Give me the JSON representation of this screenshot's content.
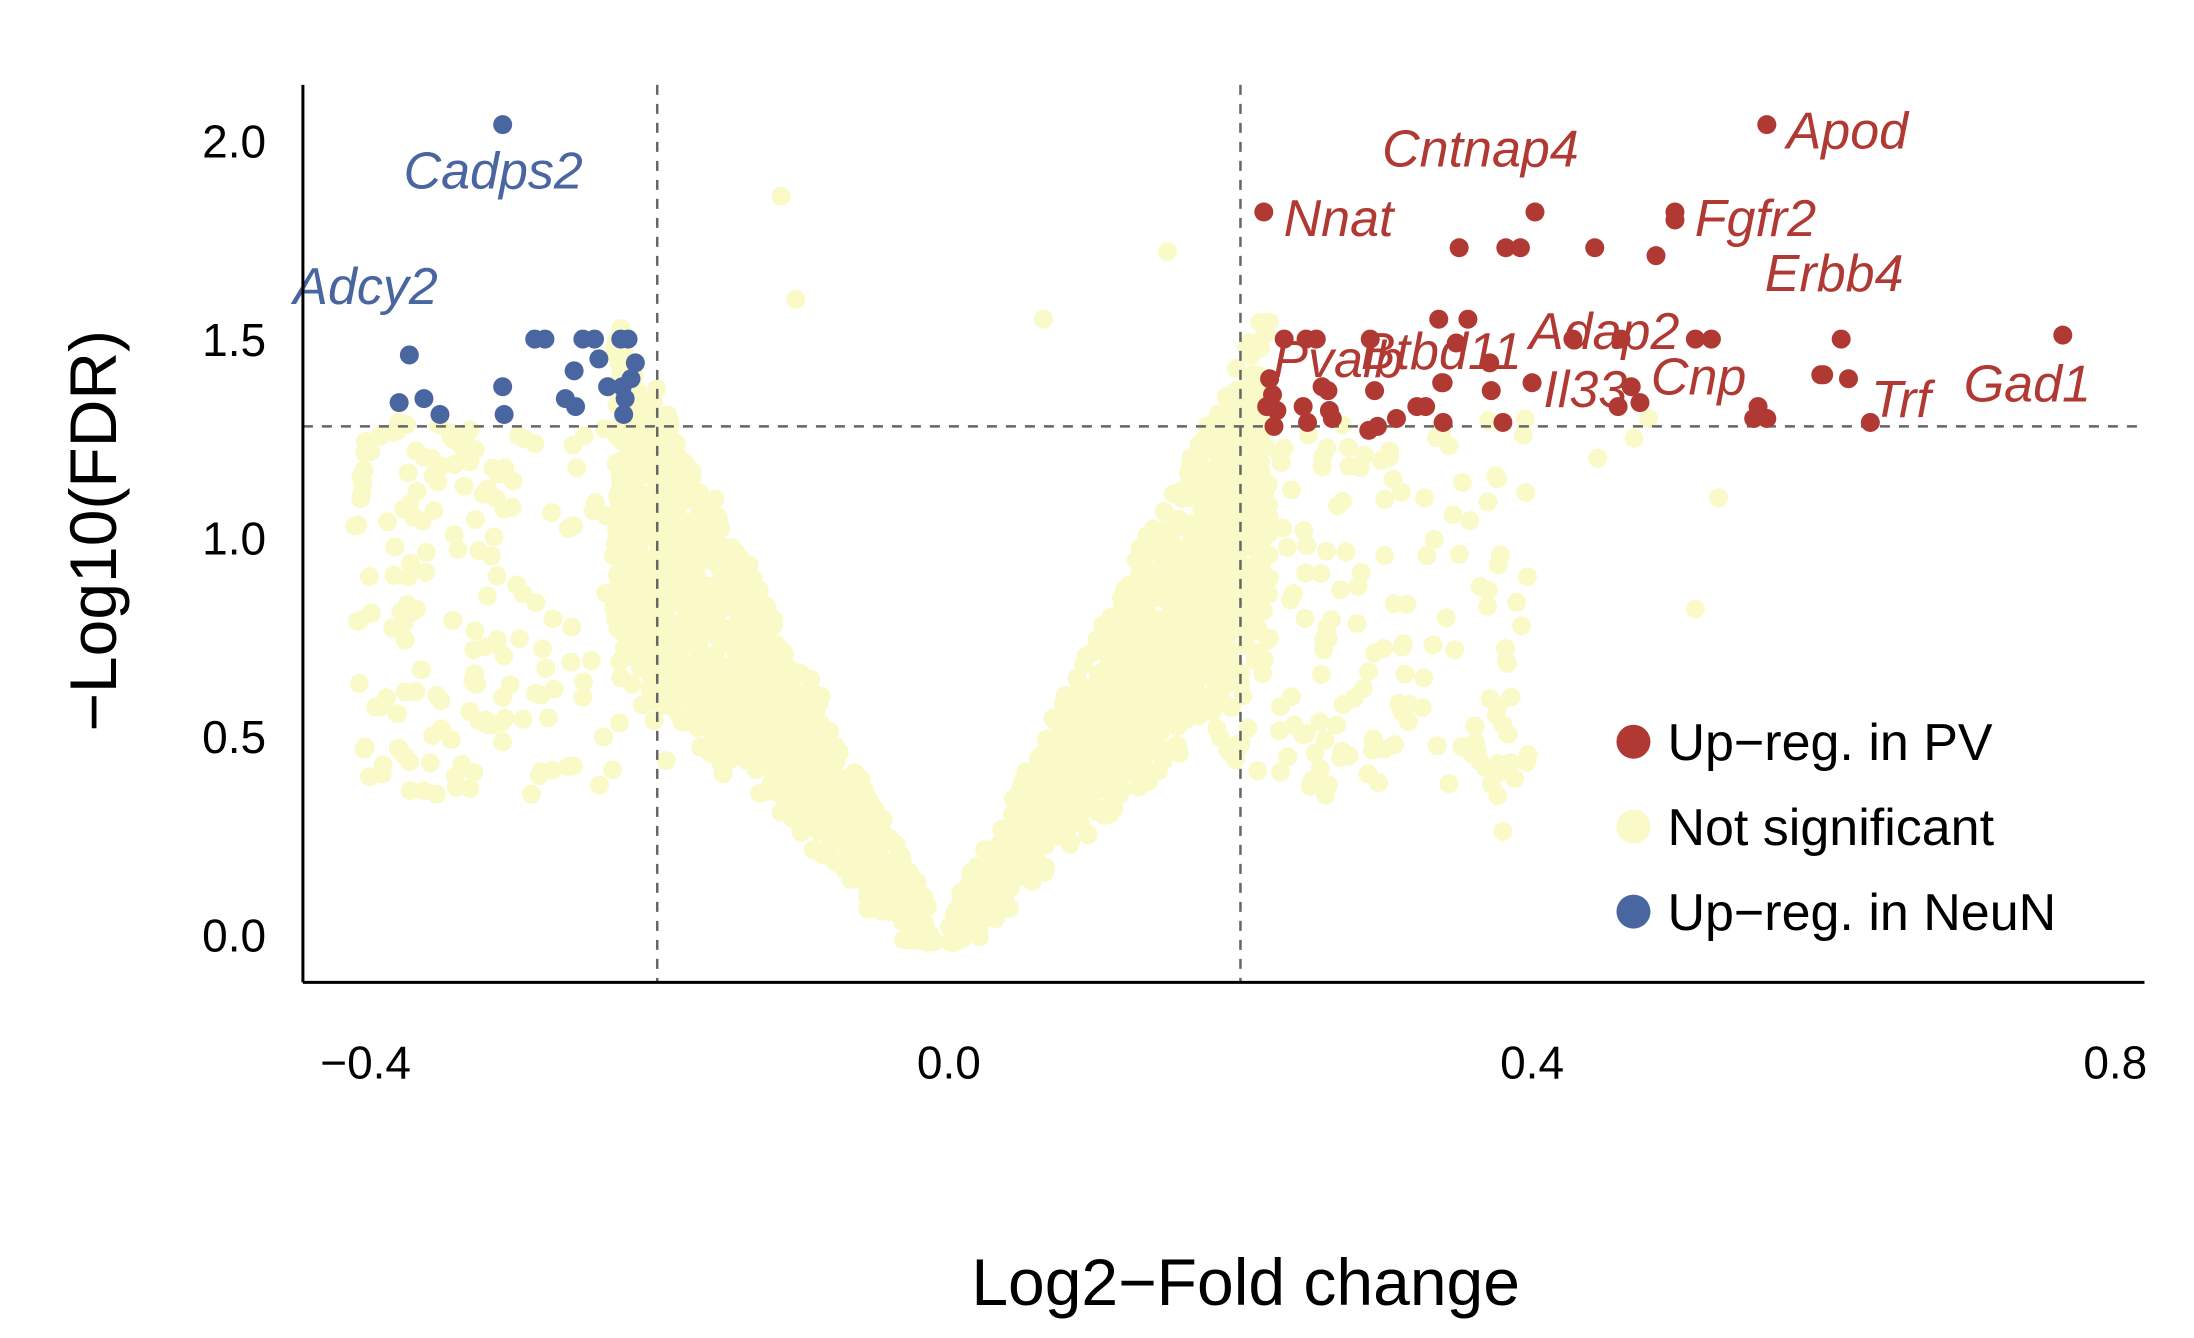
{
  "chart_data": {
    "type": "scatter",
    "title": "",
    "xlabel": "Log2−Fold change",
    "ylabel": "−Log10(FDR)",
    "xlim": [
      -0.443,
      0.82
    ],
    "ylim": [
      -0.12,
      2.14
    ],
    "xticks": [
      -0.4,
      0.0,
      0.4,
      0.8
    ],
    "xtick_labels": [
      "−0.4",
      "0.0",
      "0.4",
      "0.8"
    ],
    "yticks": [
      0.0,
      0.5,
      1.0,
      1.5,
      2.0
    ],
    "ytick_labels": [
      "0.0",
      "0.5",
      "1.0",
      "1.5",
      "2.0"
    ],
    "grid": false,
    "reference_lines": {
      "vertical": [
        -0.2,
        0.2
      ],
      "horizontal": [
        1.28
      ]
    },
    "legend": {
      "placement": "bottom-right",
      "entries": [
        {
          "label": "Up−reg. in PV",
          "color": "#B03A33"
        },
        {
          "label": "Not significant",
          "color": "#FAFAC8"
        },
        {
          "label": "Up−reg. in NeuN",
          "color": "#4A66A0"
        }
      ]
    },
    "colors": {
      "up_pv": "#B03A33",
      "not_significant": "#FAFAC8",
      "up_neun": "#4A66A0"
    },
    "series": [
      {
        "name": "Up−reg. in NeuN",
        "key": "up_neun",
        "points": [
          [
            -0.306,
            2.04
          ],
          [
            -0.37,
            1.46
          ],
          [
            -0.377,
            1.34
          ],
          [
            -0.36,
            1.35
          ],
          [
            -0.349,
            1.31
          ],
          [
            -0.306,
            1.38
          ],
          [
            -0.305,
            1.31
          ],
          [
            -0.284,
            1.5
          ],
          [
            -0.277,
            1.5
          ],
          [
            -0.263,
            1.35
          ],
          [
            -0.257,
            1.42
          ],
          [
            -0.256,
            1.33
          ],
          [
            -0.251,
            1.5
          ],
          [
            -0.243,
            1.5
          ],
          [
            -0.24,
            1.45
          ],
          [
            -0.234,
            1.38
          ],
          [
            -0.225,
            1.5
          ],
          [
            -0.22,
            1.5
          ],
          [
            -0.223,
            1.31
          ],
          [
            -0.222,
            1.35
          ],
          [
            -0.218,
            1.4
          ],
          [
            -0.215,
            1.44
          ],
          [
            -0.224,
            1.38
          ]
        ]
      },
      {
        "name": "Up−reg. in PV",
        "key": "up_pv",
        "points": [
          [
            0.216,
            1.82
          ],
          [
            0.402,
            1.82
          ],
          [
            0.561,
            2.04
          ],
          [
            0.498,
            1.82
          ],
          [
            0.498,
            1.8
          ],
          [
            0.35,
            1.73
          ],
          [
            0.382,
            1.73
          ],
          [
            0.392,
            1.73
          ],
          [
            0.443,
            1.73
          ],
          [
            0.485,
            1.71
          ],
          [
            0.336,
            1.55
          ],
          [
            0.356,
            1.55
          ],
          [
            0.461,
            1.5
          ],
          [
            0.428,
            1.5
          ],
          [
            0.612,
            1.5
          ],
          [
            0.764,
            1.51
          ],
          [
            0.339,
            1.39
          ],
          [
            0.4,
            1.39
          ],
          [
            0.598,
            1.41
          ],
          [
            0.617,
            1.4
          ],
          [
            0.23,
            1.5
          ],
          [
            0.245,
            1.5
          ],
          [
            0.252,
            1.5
          ],
          [
            0.289,
            1.5
          ],
          [
            0.348,
            1.49
          ],
          [
            0.512,
            1.5
          ],
          [
            0.523,
            1.5
          ],
          [
            0.371,
            1.44
          ],
          [
            0.372,
            1.37
          ],
          [
            0.468,
            1.38
          ],
          [
            0.474,
            1.34
          ],
          [
            0.459,
            1.33
          ],
          [
            0.22,
            1.4
          ],
          [
            0.222,
            1.36
          ],
          [
            0.218,
            1.33
          ],
          [
            0.225,
            1.32
          ],
          [
            0.223,
            1.28
          ],
          [
            0.243,
            1.33
          ],
          [
            0.246,
            1.29
          ],
          [
            0.256,
            1.38
          ],
          [
            0.26,
            1.37
          ],
          [
            0.261,
            1.32
          ],
          [
            0.263,
            1.3
          ],
          [
            0.292,
            1.37
          ],
          [
            0.288,
            1.27
          ],
          [
            0.294,
            1.28
          ],
          [
            0.307,
            1.3
          ],
          [
            0.321,
            1.33
          ],
          [
            0.327,
            1.33
          ],
          [
            0.339,
            1.29
          ],
          [
            0.38,
            1.29
          ],
          [
            0.338,
            1.39
          ],
          [
            0.555,
            1.33
          ],
          [
            0.552,
            1.3
          ],
          [
            0.561,
            1.3
          ],
          [
            0.632,
            1.29
          ],
          [
            0.6,
            1.41
          ]
        ]
      }
    ],
    "labels": [
      {
        "gene": "Cadps2",
        "x": -0.306,
        "y": 2.04,
        "group": "up_neun"
      },
      {
        "gene": "Adcy2",
        "x": -0.37,
        "y": 1.46,
        "group": "up_neun"
      },
      {
        "gene": "Nnat",
        "x": 0.216,
        "y": 1.82,
        "group": "up_pv"
      },
      {
        "gene": "Cntnap4",
        "x": 0.402,
        "y": 1.82,
        "group": "up_pv"
      },
      {
        "gene": "Apod",
        "x": 0.561,
        "y": 2.04,
        "group": "up_pv"
      },
      {
        "gene": "Fgfr2",
        "x": 0.498,
        "y": 1.82,
        "group": "up_pv"
      },
      {
        "gene": "Btbd11",
        "x": 0.336,
        "y": 1.55,
        "group": "up_pv"
      },
      {
        "gene": "Adap2",
        "x": 0.461,
        "y": 1.5,
        "group": "up_pv"
      },
      {
        "gene": "Erbb4",
        "x": 0.612,
        "y": 1.5,
        "group": "up_pv"
      },
      {
        "gene": "Gad1",
        "x": 0.764,
        "y": 1.51,
        "group": "up_pv"
      },
      {
        "gene": "Pvalb",
        "x": 0.339,
        "y": 1.39,
        "group": "up_pv"
      },
      {
        "gene": "Il33",
        "x": 0.4,
        "y": 1.39,
        "group": "up_pv"
      },
      {
        "gene": "Cnp",
        "x": 0.598,
        "y": 1.41,
        "group": "up_pv"
      },
      {
        "gene": "Trf",
        "x": 0.617,
        "y": 1.4,
        "group": "up_pv"
      }
    ],
    "not_significant_summary": {
      "description": "Dense V-shaped cloud of non-significant genes centred at x=0, y=0, rising to about y=1.5 near x=±0.2, plus sparse outliers",
      "approx_point_count": 3000,
      "outliers": [
        [
          -0.115,
          1.86
        ],
        [
          0.15,
          1.72
        ],
        [
          -0.105,
          1.6
        ],
        [
          0.065,
          1.55
        ],
        [
          -0.385,
          1.04
        ],
        [
          -0.365,
          0.82
        ],
        [
          -0.31,
          0.73
        ],
        [
          0.343,
          0.38
        ],
        [
          0.38,
          0.26
        ],
        [
          0.528,
          1.1
        ],
        [
          0.512,
          0.82
        ],
        [
          0.48,
          1.3
        ],
        [
          0.445,
          1.2
        ],
        [
          0.47,
          1.25
        ]
      ]
    }
  }
}
